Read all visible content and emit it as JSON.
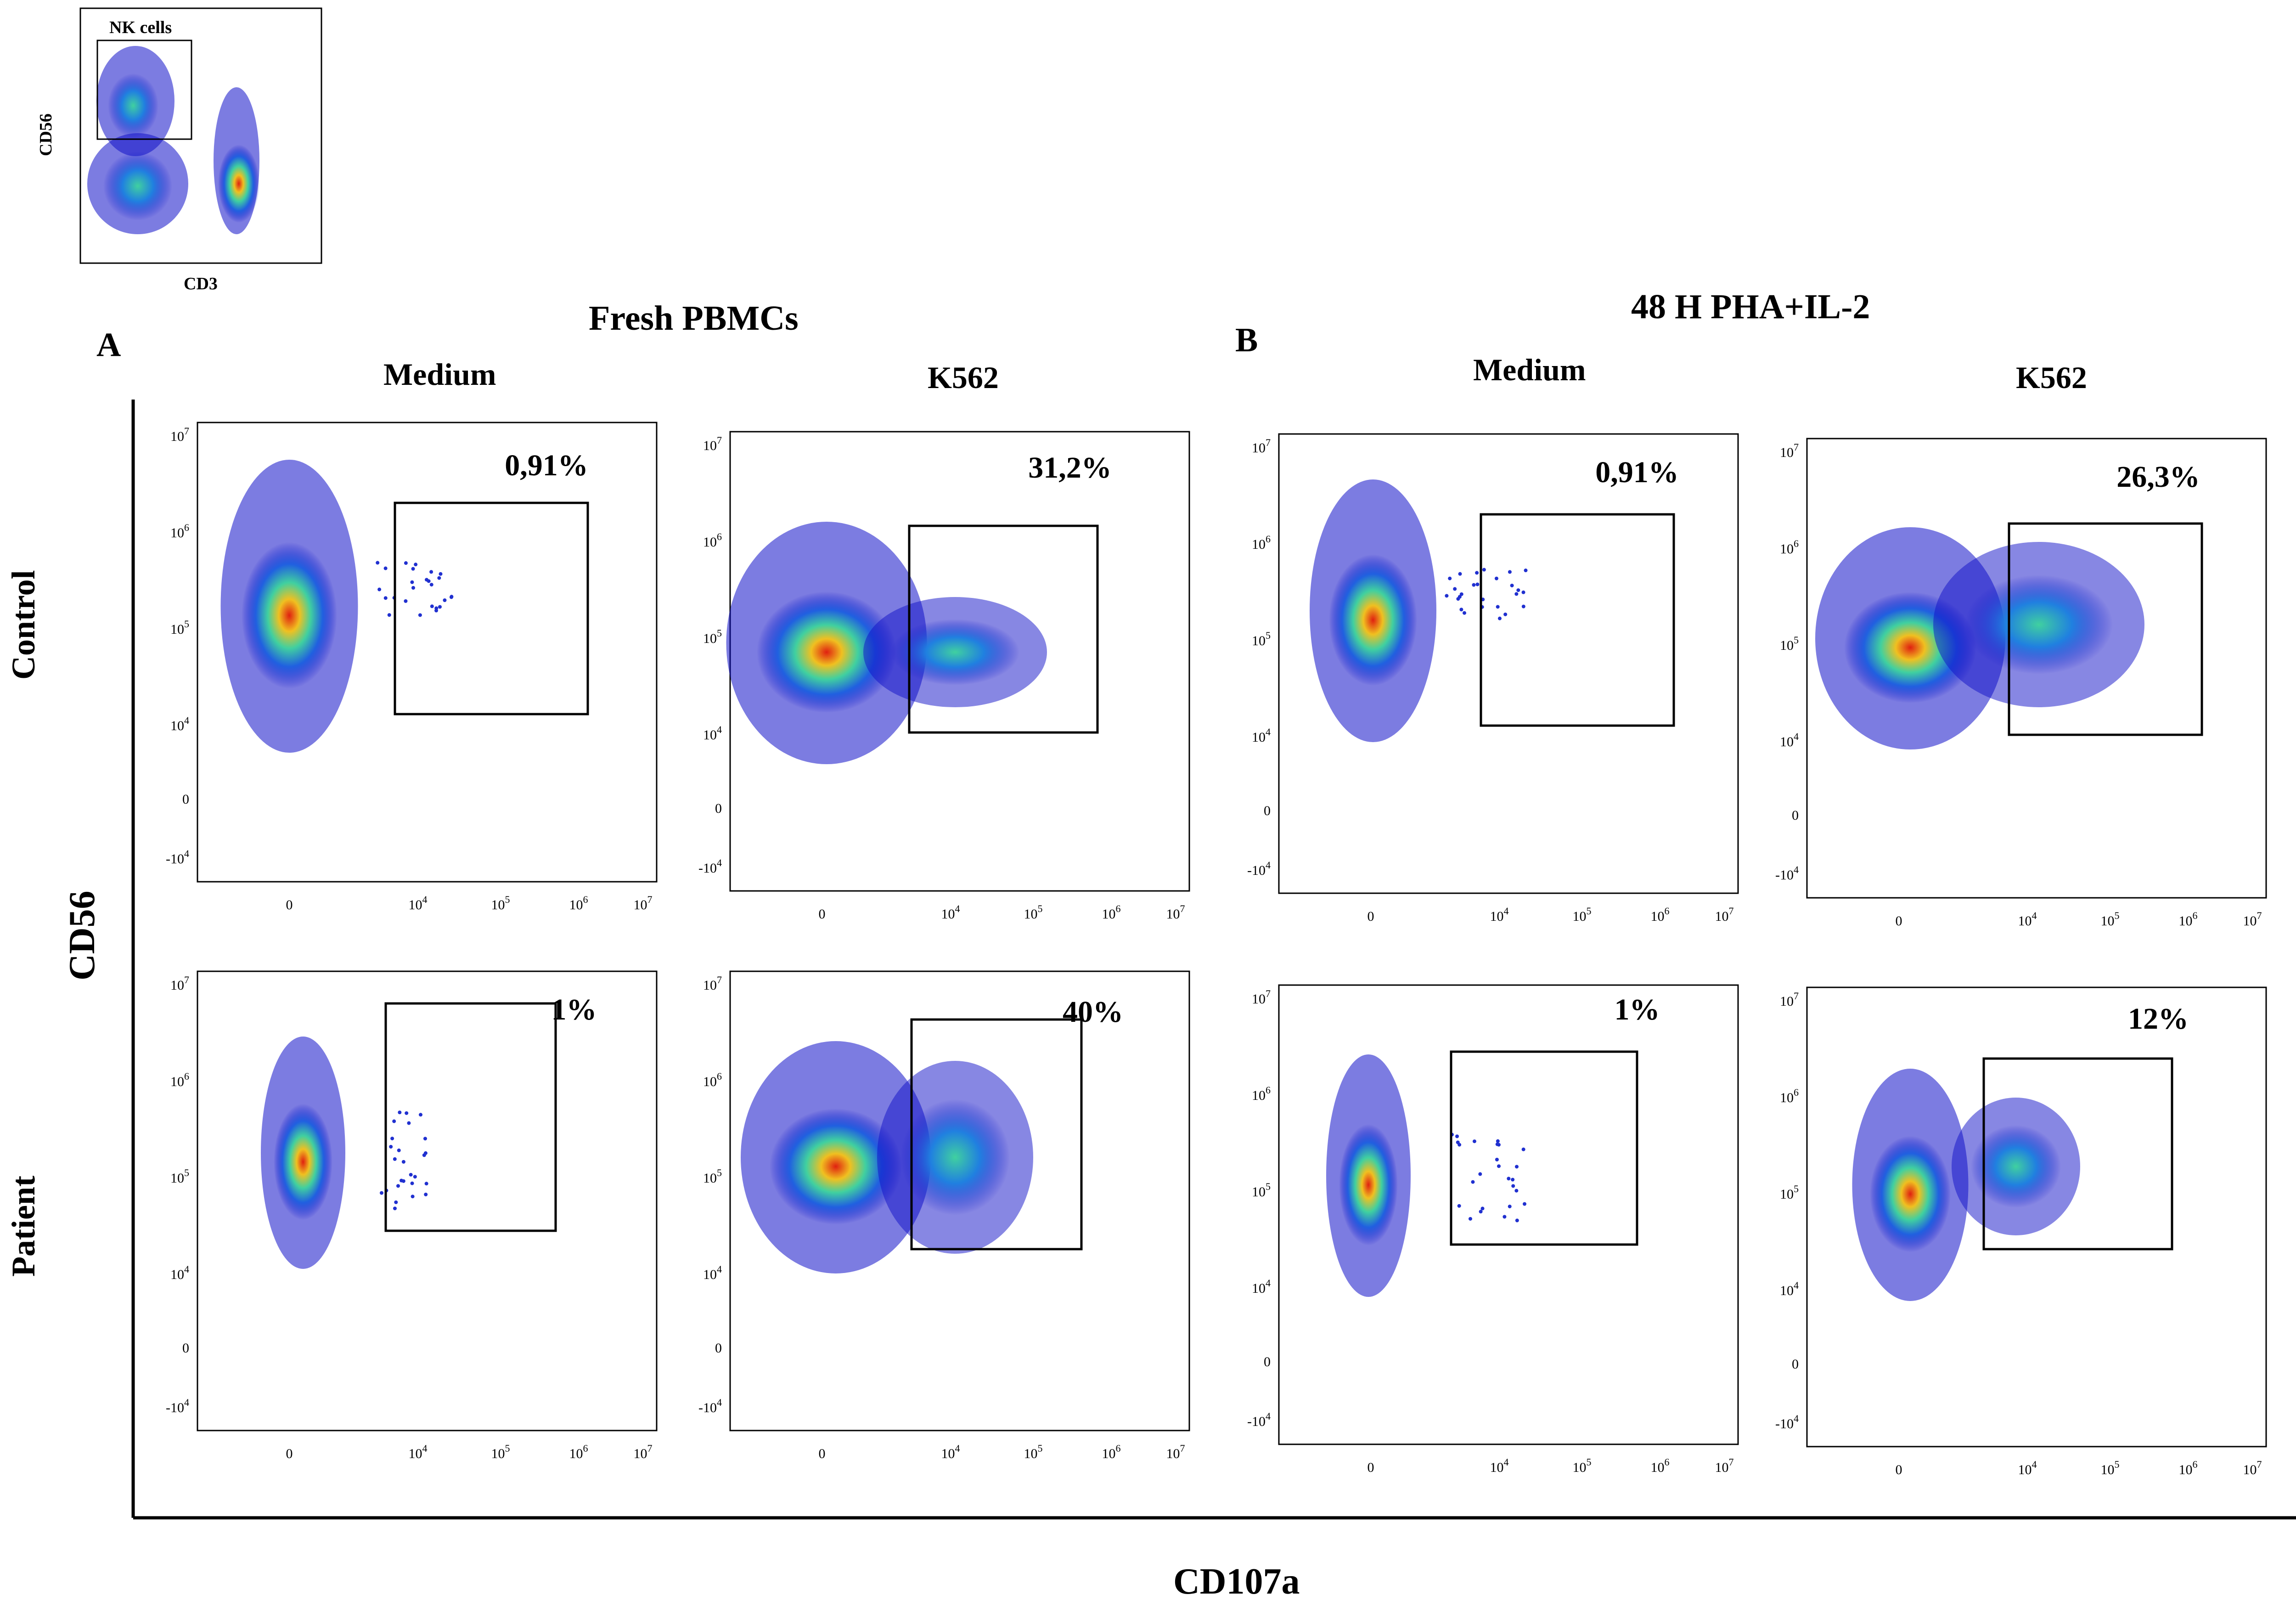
{
  "figure": {
    "title_left": "Fresh PBMCs",
    "title_right": "48 H PHA+IL-2",
    "panel_a": "A",
    "panel_b": "B",
    "col_medium": "Medium",
    "col_k562": "K562",
    "row_control": "Control",
    "row_patient": "Patient",
    "y_axis_label": "CD56",
    "x_axis_label": "CD107a",
    "ticks": [
      "10",
      "0",
      "-10"
    ]
  },
  "inset": {
    "gate_label": "NK cells",
    "x_label": "CD3",
    "y_label": "CD56"
  },
  "plots": [
    {
      "id": "control-fresh-medium",
      "percent": "0,91%"
    },
    {
      "id": "control-fresh-k562",
      "percent": "31,2%"
    },
    {
      "id": "control-48h-medium",
      "percent": "0,91%"
    },
    {
      "id": "control-48h-k562",
      "percent": "26,3%"
    },
    {
      "id": "patient-fresh-medium",
      "percent": "1%"
    },
    {
      "id": "patient-fresh-k562",
      "percent": "40%"
    },
    {
      "id": "patient-48h-medium",
      "percent": "1%"
    },
    {
      "id": "patient-48h-k562",
      "percent": "12%"
    }
  ],
  "colors": {
    "density_low": "#1010c8",
    "density_mid": "#20c0b0",
    "density_high": "#e0e020",
    "density_peak": "#e02010"
  }
}
